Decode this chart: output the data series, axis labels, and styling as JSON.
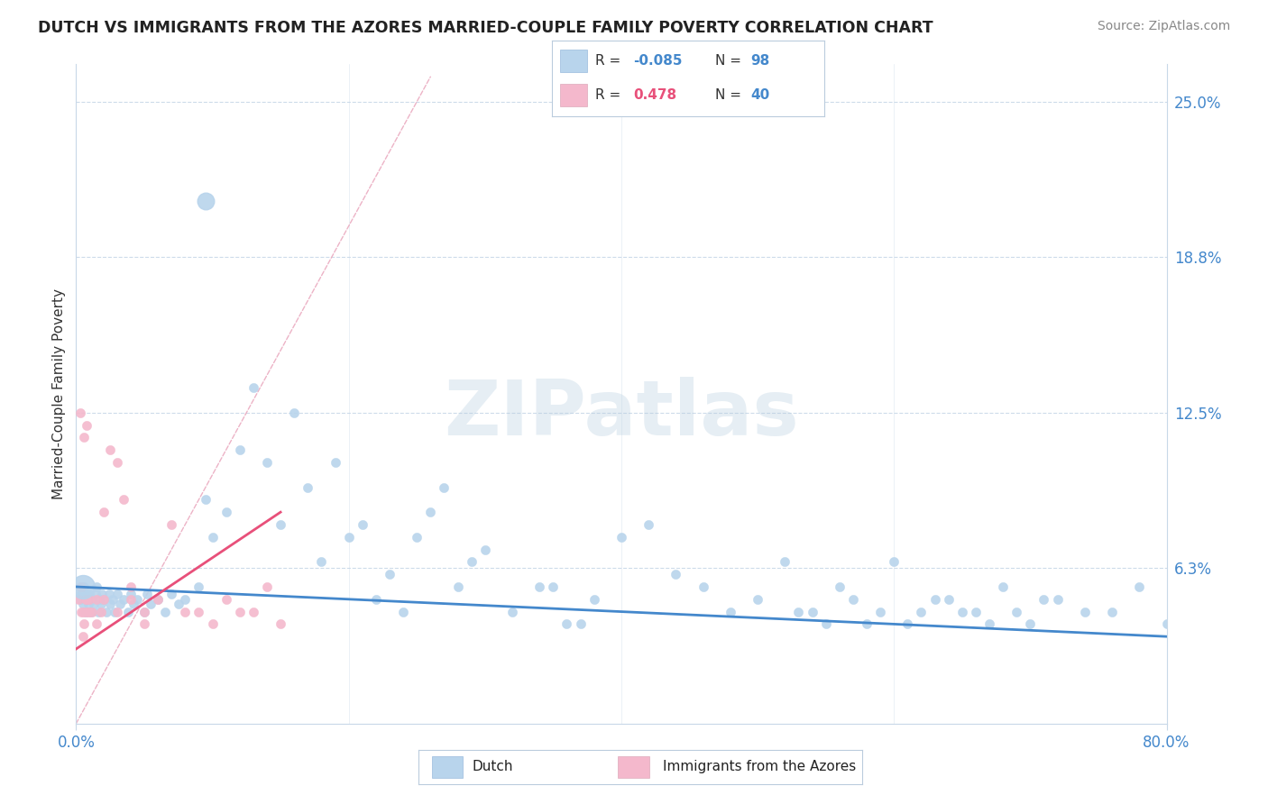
{
  "title": "DUTCH VS IMMIGRANTS FROM THE AZORES MARRIED-COUPLE FAMILY POVERTY CORRELATION CHART",
  "source": "Source: ZipAtlas.com",
  "ylabel": "Married-Couple Family Poverty",
  "xlim": [
    0.0,
    80.0
  ],
  "ylim": [
    0.0,
    26.5
  ],
  "yticks": [
    0.0,
    6.25,
    12.5,
    18.75,
    25.0
  ],
  "ytick_labels": [
    "",
    "6.3%",
    "12.5%",
    "18.8%",
    "25.0%"
  ],
  "xticks": [
    0.0,
    80.0
  ],
  "xtick_labels": [
    "0.0%",
    "80.0%"
  ],
  "grid_color": "#c8d8e8",
  "background_color": "#ffffff",
  "dutch": {
    "label": "Dutch",
    "R": -0.085,
    "N": 98,
    "scatter_color": "#b8d4ec",
    "trend_color": "#4488cc",
    "x": [
      0.3,
      0.4,
      0.5,
      0.6,
      0.7,
      0.8,
      0.9,
      1.0,
      1.1,
      1.2,
      1.3,
      1.4,
      1.5,
      1.6,
      1.7,
      1.8,
      1.9,
      2.0,
      2.2,
      2.4,
      2.5,
      2.7,
      2.8,
      3.0,
      3.2,
      3.5,
      3.8,
      4.0,
      4.2,
      4.5,
      5.0,
      5.2,
      5.5,
      6.0,
      6.5,
      7.0,
      7.5,
      8.0,
      9.0,
      9.5,
      10.0,
      11.0,
      12.0,
      13.0,
      14.0,
      15.0,
      16.0,
      17.0,
      18.0,
      19.0,
      20.0,
      21.0,
      22.0,
      23.0,
      24.0,
      25.0,
      26.0,
      27.0,
      28.0,
      29.0,
      30.0,
      32.0,
      34.0,
      36.0,
      38.0,
      40.0,
      42.0,
      44.0,
      46.0,
      48.0,
      50.0,
      52.0,
      54.0,
      56.0,
      58.0,
      60.0,
      62.0,
      64.0,
      66.0,
      68.0,
      70.0,
      72.0,
      74.0,
      76.0,
      78.0,
      80.0,
      35.0,
      37.0,
      53.0,
      55.0,
      57.0,
      59.0,
      61.0,
      63.0,
      65.0,
      67.0,
      69.0,
      71.0
    ],
    "y": [
      5.0,
      5.2,
      4.8,
      5.5,
      4.5,
      5.0,
      4.8,
      5.2,
      4.5,
      5.0,
      4.8,
      5.2,
      5.5,
      4.5,
      5.0,
      4.8,
      5.2,
      5.0,
      4.5,
      5.2,
      4.8,
      5.0,
      4.5,
      5.2,
      4.8,
      5.0,
      4.5,
      5.2,
      4.8,
      5.0,
      4.5,
      5.2,
      4.8,
      5.0,
      4.5,
      5.2,
      4.8,
      5.0,
      5.5,
      9.0,
      7.5,
      8.5,
      11.0,
      13.5,
      10.5,
      8.0,
      12.5,
      9.5,
      6.5,
      10.5,
      7.5,
      8.0,
      5.0,
      6.0,
      4.5,
      7.5,
      8.5,
      9.5,
      5.5,
      6.5,
      7.0,
      4.5,
      5.5,
      4.0,
      5.0,
      7.5,
      8.0,
      6.0,
      5.5,
      4.5,
      5.0,
      6.5,
      4.5,
      5.5,
      4.0,
      6.5,
      4.5,
      5.0,
      4.5,
      5.5,
      4.0,
      5.0,
      4.5,
      4.5,
      5.5,
      4.0,
      5.5,
      4.0,
      4.5,
      4.0,
      5.0,
      4.5,
      4.0,
      5.0,
      4.5,
      4.0,
      4.5,
      5.0
    ],
    "outlier_x": [
      9.5
    ],
    "outlier_y": [
      21.0
    ],
    "outlier_size": 180,
    "large_x": [
      0.5
    ],
    "large_y": [
      5.5
    ],
    "large_size": 350
  },
  "azores": {
    "label": "Immigrants from the Azores",
    "R": 0.478,
    "N": 40,
    "scatter_color": "#f4b8cc",
    "trend_color": "#e8507a",
    "x": [
      0.2,
      0.3,
      0.4,
      0.5,
      0.6,
      0.7,
      0.8,
      0.9,
      1.0,
      1.2,
      1.5,
      1.8,
      2.0,
      2.5,
      3.0,
      3.5,
      4.0,
      5.0,
      6.0,
      7.0,
      8.0,
      9.0,
      10.0,
      11.0,
      12.0,
      13.0,
      14.0,
      15.0,
      0.3,
      0.4,
      0.5,
      0.6,
      0.7,
      0.8,
      1.0,
      1.5,
      2.0,
      3.0,
      4.0,
      5.0
    ],
    "y": [
      5.0,
      12.5,
      5.5,
      4.5,
      11.5,
      5.0,
      12.0,
      4.5,
      5.0,
      4.5,
      5.0,
      4.5,
      8.5,
      11.0,
      10.5,
      9.0,
      5.5,
      4.0,
      5.0,
      8.0,
      4.5,
      4.5,
      4.0,
      5.0,
      4.5,
      4.5,
      5.5,
      4.0,
      5.5,
      4.5,
      3.5,
      4.0,
      4.5,
      5.0,
      4.5,
      4.0,
      5.0,
      4.5,
      5.0,
      4.5
    ]
  },
  "legend_R_color_blue": "#4488cc",
  "legend_R_color_pink": "#e8507a",
  "title_color": "#222222",
  "tick_color": "#4488cc",
  "source_color": "#888888",
  "diag_color": "#e8a0b8",
  "watermark_color": "#c8daeaaa"
}
